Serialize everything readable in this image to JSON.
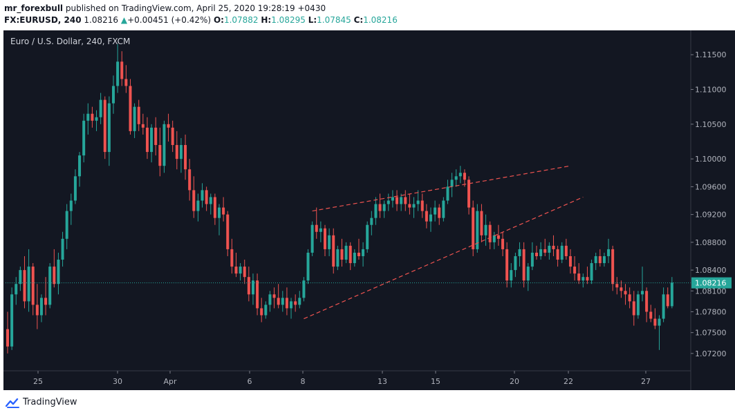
{
  "header": {
    "author": "mr_forexbull",
    "published_text": "published on TradingView.com, April 25, 2020 19:28:19 +0430",
    "symbol": "FX:EURUSD, 240",
    "last_price": "1.08216",
    "change_arrow": "▲",
    "change": "+0.00451 (+0.42%)",
    "open_label": "O:",
    "open": "1.07882",
    "high_label": "H:",
    "high": "1.08295",
    "low_label": "L:",
    "low": "1.07845",
    "close_label": "C:",
    "close": "1.08216"
  },
  "chart_title": "Euro / U.S. Dollar, 240, FXCM",
  "chart_data": {
    "type": "candlestick",
    "ylim": [
      1.0695,
      1.1185
    ],
    "y_ticks": [
      "1.11500",
      "1.11000",
      "1.10500",
      "1.10000",
      "1.09600",
      "1.09200",
      "1.08800",
      "1.08400",
      "1.08100",
      "1.07800",
      "1.07500",
      "1.07200"
    ],
    "x_ticks": [
      "25",
      "30",
      "Apr",
      "6",
      "8",
      "13",
      "15",
      "20",
      "22",
      "27"
    ],
    "current_price": 1.08216,
    "current_price_label": "1.08216",
    "colors": {
      "up": "#26a69a",
      "down": "#ef5350",
      "background": "#131722",
      "pattern_lines": "#ef5350"
    },
    "ohlc": [
      [
        1.0755,
        1.078,
        1.072,
        1.073
      ],
      [
        1.073,
        1.0815,
        1.0725,
        1.0805
      ],
      [
        1.0805,
        1.083,
        1.079,
        1.082
      ],
      [
        1.082,
        1.0845,
        1.081,
        1.084
      ],
      [
        1.084,
        1.086,
        1.0785,
        1.0795
      ],
      [
        1.0795,
        1.087,
        1.078,
        1.0845
      ],
      [
        1.0845,
        1.085,
        1.0775,
        1.079
      ],
      [
        1.079,
        1.082,
        1.0755,
        1.0775
      ],
      [
        1.0775,
        1.0805,
        1.0765,
        1.08
      ],
      [
        1.08,
        1.083,
        1.0775,
        1.079
      ],
      [
        1.079,
        1.085,
        1.0785,
        1.0845
      ],
      [
        1.0845,
        1.087,
        1.0815,
        1.082
      ],
      [
        1.082,
        1.0865,
        1.0805,
        1.0855
      ],
      [
        1.0855,
        1.0895,
        1.0845,
        1.0885
      ],
      [
        1.0885,
        1.0935,
        1.087,
        1.0925
      ],
      [
        1.0925,
        1.095,
        1.0905,
        1.094
      ],
      [
        1.094,
        1.0985,
        1.0935,
        1.0975
      ],
      [
        1.0975,
        1.101,
        1.096,
        1.1005
      ],
      [
        1.1005,
        1.1065,
        1.0995,
        1.1055
      ],
      [
        1.1055,
        1.108,
        1.1035,
        1.1065
      ],
      [
        1.1065,
        1.1075,
        1.1045,
        1.1055
      ],
      [
        1.1055,
        1.107,
        1.104,
        1.106
      ],
      [
        1.106,
        1.1095,
        1.105,
        1.1085
      ],
      [
        1.1085,
        1.109,
        1.1,
        1.101
      ],
      [
        1.101,
        1.109,
        1.099,
        1.108
      ],
      [
        1.108,
        1.112,
        1.1065,
        1.1105
      ],
      [
        1.1105,
        1.1165,
        1.1095,
        1.114
      ],
      [
        1.114,
        1.1155,
        1.1105,
        1.1115
      ],
      [
        1.1115,
        1.1135,
        1.1095,
        1.1105
      ],
      [
        1.1105,
        1.1115,
        1.1035,
        1.104
      ],
      [
        1.104,
        1.108,
        1.103,
        1.1075
      ],
      [
        1.1075,
        1.1085,
        1.104,
        1.105
      ],
      [
        1.105,
        1.1065,
        1.1035,
        1.1045
      ],
      [
        1.1045,
        1.106,
        1.1,
        1.101
      ],
      [
        1.101,
        1.105,
        1.0995,
        1.1045
      ],
      [
        1.1045,
        1.106,
        1.1005,
        1.102
      ],
      [
        1.102,
        1.1045,
        1.0975,
        1.099
      ],
      [
        1.099,
        1.1055,
        1.098,
        1.105
      ],
      [
        1.105,
        1.1065,
        1.1025,
        1.1045
      ],
      [
        1.1045,
        1.1055,
        1.101,
        1.102
      ],
      [
        1.102,
        1.104,
        1.0985,
        1.1
      ],
      [
        1.1,
        1.103,
        1.098,
        1.102
      ],
      [
        1.102,
        1.1035,
        1.097,
        1.0985
      ],
      [
        1.0985,
        1.1,
        1.094,
        1.0955
      ],
      [
        1.0955,
        1.0975,
        1.0915,
        1.0925
      ],
      [
        1.0925,
        1.095,
        1.091,
        1.094
      ],
      [
        1.094,
        1.0965,
        1.093,
        1.0955
      ],
      [
        1.0955,
        1.096,
        1.0925,
        1.0935
      ],
      [
        1.0935,
        1.095,
        1.092,
        1.0945
      ],
      [
        1.0945,
        1.095,
        1.0905,
        1.0915
      ],
      [
        1.0915,
        1.0935,
        1.089,
        1.093
      ],
      [
        1.093,
        1.0945,
        1.091,
        1.092
      ],
      [
        1.092,
        1.0925,
        1.086,
        1.087
      ],
      [
        1.087,
        1.0885,
        1.0835,
        1.0845
      ],
      [
        1.0845,
        1.0865,
        1.083,
        1.0835
      ],
      [
        1.0835,
        1.085,
        1.0825,
        1.0845
      ],
      [
        1.0845,
        1.0855,
        1.082,
        1.083
      ],
      [
        1.083,
        1.0845,
        1.0795,
        1.0805
      ],
      [
        1.0805,
        1.0835,
        1.079,
        1.0825
      ],
      [
        1.0825,
        1.0835,
        1.0775,
        1.0785
      ],
      [
        1.0785,
        1.08,
        1.0765,
        1.0775
      ],
      [
        1.0775,
        1.0795,
        1.077,
        1.079
      ],
      [
        1.079,
        1.081,
        1.078,
        1.0805
      ],
      [
        1.0805,
        1.0815,
        1.0785,
        1.08
      ],
      [
        1.08,
        1.082,
        1.0785,
        1.079
      ],
      [
        1.079,
        1.081,
        1.078,
        1.08
      ],
      [
        1.08,
        1.0815,
        1.0775,
        1.0785
      ],
      [
        1.0785,
        1.08,
        1.077,
        1.0795
      ],
      [
        1.0795,
        1.0805,
        1.078,
        1.079
      ],
      [
        1.079,
        1.081,
        1.0785,
        1.08
      ],
      [
        1.08,
        1.083,
        1.0795,
        1.0825
      ],
      [
        1.0825,
        1.087,
        1.082,
        1.0865
      ],
      [
        1.0865,
        1.091,
        1.086,
        1.0905
      ],
      [
        1.0905,
        1.093,
        1.0885,
        1.0895
      ],
      [
        1.0895,
        1.091,
        1.088,
        1.09
      ],
      [
        1.09,
        1.0905,
        1.086,
        1.087
      ],
      [
        1.087,
        1.09,
        1.086,
        1.089
      ],
      [
        1.089,
        1.09,
        1.0835,
        1.0845
      ],
      [
        1.0845,
        1.0875,
        1.084,
        1.087
      ],
      [
        1.087,
        1.0885,
        1.0845,
        1.0855
      ],
      [
        1.0855,
        1.088,
        1.085,
        1.0875
      ],
      [
        1.0875,
        1.088,
        1.084,
        1.085
      ],
      [
        1.085,
        1.087,
        1.0845,
        1.0865
      ],
      [
        1.0865,
        1.0885,
        1.0855,
        1.086
      ],
      [
        1.086,
        1.088,
        1.0845,
        1.087
      ],
      [
        1.087,
        1.091,
        1.0865,
        1.0905
      ],
      [
        1.0905,
        1.0925,
        1.089,
        1.0915
      ],
      [
        1.0915,
        1.0945,
        1.0905,
        1.0935
      ],
      [
        1.0935,
        1.095,
        1.0915,
        1.0925
      ],
      [
        1.0925,
        1.094,
        1.0915,
        1.0935
      ],
      [
        1.0935,
        1.095,
        1.0925,
        1.094
      ],
      [
        1.094,
        1.0955,
        1.093,
        1.0945
      ],
      [
        1.0945,
        1.0955,
        1.0925,
        1.0935
      ],
      [
        1.0935,
        1.095,
        1.0925,
        1.0945
      ],
      [
        1.0945,
        1.0955,
        1.0925,
        1.0935
      ],
      [
        1.0935,
        1.095,
        1.092,
        1.093
      ],
      [
        1.093,
        1.0945,
        1.0915,
        1.0935
      ],
      [
        1.0935,
        1.0955,
        1.0925,
        1.094
      ],
      [
        1.094,
        1.095,
        1.0915,
        1.0925
      ],
      [
        1.0925,
        1.0935,
        1.09,
        1.091
      ],
      [
        1.091,
        1.093,
        1.0895,
        1.092
      ],
      [
        1.092,
        1.094,
        1.091,
        1.093
      ],
      [
        1.093,
        1.0935,
        1.0905,
        1.0915
      ],
      [
        1.0915,
        1.0945,
        1.091,
        1.094
      ],
      [
        1.094,
        1.097,
        1.0935,
        1.096
      ],
      [
        1.096,
        1.098,
        1.0945,
        1.097
      ],
      [
        1.097,
        1.0985,
        1.096,
        1.0975
      ],
      [
        1.0975,
        1.099,
        1.0965,
        1.098
      ],
      [
        1.098,
        1.0985,
        1.096,
        1.097
      ],
      [
        1.097,
        1.0975,
        1.092,
        1.093
      ],
      [
        1.093,
        1.094,
        1.086,
        1.087
      ],
      [
        1.087,
        1.0935,
        1.0865,
        1.0925
      ],
      [
        1.0925,
        1.0935,
        1.088,
        1.089
      ],
      [
        1.089,
        1.092,
        1.0875,
        1.0905
      ],
      [
        1.0905,
        1.091,
        1.087,
        1.088
      ],
      [
        1.088,
        1.0895,
        1.087,
        1.089
      ],
      [
        1.089,
        1.0905,
        1.0875,
        1.0885
      ],
      [
        1.0885,
        1.0895,
        1.086,
        1.087
      ],
      [
        1.087,
        1.088,
        1.0815,
        1.0825
      ],
      [
        1.0825,
        1.085,
        1.0815,
        1.084
      ],
      [
        1.084,
        1.0865,
        1.083,
        1.086
      ],
      [
        1.086,
        1.088,
        1.0845,
        1.087
      ],
      [
        1.087,
        1.088,
        1.0815,
        1.0825
      ],
      [
        1.0825,
        1.085,
        1.081,
        1.0845
      ],
      [
        1.0845,
        1.088,
        1.084,
        1.0865
      ],
      [
        1.0865,
        1.0875,
        1.0855,
        1.086
      ],
      [
        1.086,
        1.088,
        1.0855,
        1.087
      ],
      [
        1.087,
        1.0885,
        1.086,
        1.0865
      ],
      [
        1.0865,
        1.088,
        1.0855,
        1.0875
      ],
      [
        1.0875,
        1.089,
        1.086,
        1.087
      ],
      [
        1.087,
        1.0875,
        1.0845,
        1.0855
      ],
      [
        1.0855,
        1.088,
        1.085,
        1.0875
      ],
      [
        1.0875,
        1.0885,
        1.0855,
        1.086
      ],
      [
        1.086,
        1.087,
        1.0835,
        1.0845
      ],
      [
        1.0845,
        1.086,
        1.0825,
        1.0835
      ],
      [
        1.0835,
        1.085,
        1.082,
        1.0825
      ],
      [
        1.0825,
        1.0835,
        1.0815,
        1.083
      ],
      [
        1.083,
        1.0845,
        1.082,
        1.0825
      ],
      [
        1.0825,
        1.0855,
        1.082,
        1.085
      ],
      [
        1.085,
        1.0865,
        1.084,
        1.086
      ],
      [
        1.086,
        1.087,
        1.0845,
        1.085
      ],
      [
        1.085,
        1.0865,
        1.0845,
        1.086
      ],
      [
        1.086,
        1.0885,
        1.085,
        1.087
      ],
      [
        1.087,
        1.0875,
        1.081,
        1.082
      ],
      [
        1.082,
        1.083,
        1.0805,
        1.0815
      ],
      [
        1.0815,
        1.0825,
        1.08,
        1.081
      ],
      [
        1.081,
        1.082,
        1.079,
        1.0805
      ],
      [
        1.0805,
        1.0815,
        1.0785,
        1.0795
      ],
      [
        1.0795,
        1.081,
        1.076,
        1.0775
      ],
      [
        1.0775,
        1.081,
        1.077,
        1.0805
      ],
      [
        1.0805,
        1.0845,
        1.0795,
        1.081
      ],
      [
        1.081,
        1.0815,
        1.0765,
        1.078
      ],
      [
        1.078,
        1.079,
        1.0765,
        1.077
      ],
      [
        1.077,
        1.0785,
        1.0755,
        1.076
      ],
      [
        1.076,
        1.0775,
        1.0725,
        1.077
      ],
      [
        1.077,
        1.0815,
        1.0765,
        1.0805
      ],
      [
        1.0805,
        1.0815,
        1.0785,
        1.0788
      ],
      [
        1.0788,
        1.083,
        1.0785,
        1.0822
      ]
    ],
    "pattern_lines": [
      [
        72,
        1.0925,
        133,
        1.099
      ],
      [
        70,
        1.077,
        136,
        1.0945
      ]
    ]
  },
  "footer": {
    "brand": "TradingView"
  }
}
